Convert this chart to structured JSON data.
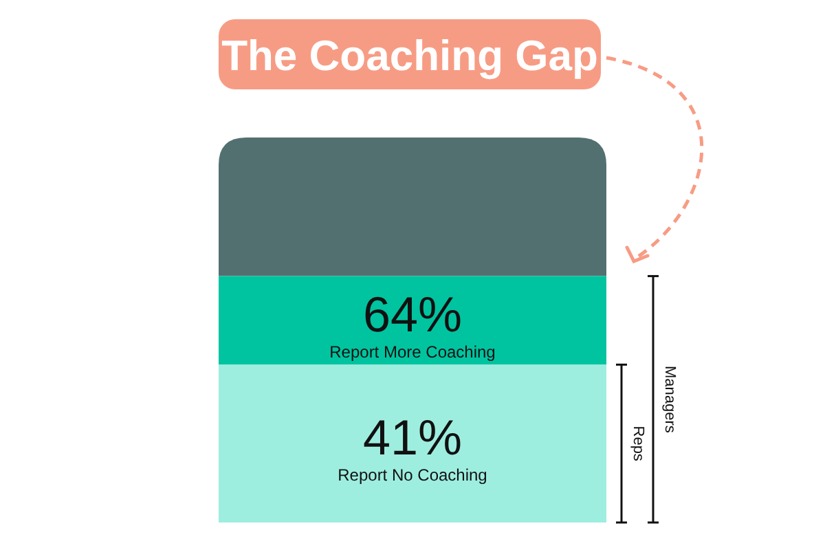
{
  "chart_data": {
    "type": "bar",
    "stacked": true,
    "title": "The Coaching Gap",
    "categories": [
      null
    ],
    "ylim": [
      0,
      100
    ],
    "series": [
      {
        "name": "Report No Coaching",
        "color": "#9eeee0",
        "values": [
          41
        ],
        "value_labels": [
          "41%"
        ]
      },
      {
        "name": "Report More Coaching",
        "color": "#00c4a0",
        "values": [
          23
        ]
      },
      {
        "color": "#537070",
        "values": [
          36
        ]
      }
    ],
    "annotations": [
      "64%",
      "Reps",
      "Managers"
    ]
  }
}
